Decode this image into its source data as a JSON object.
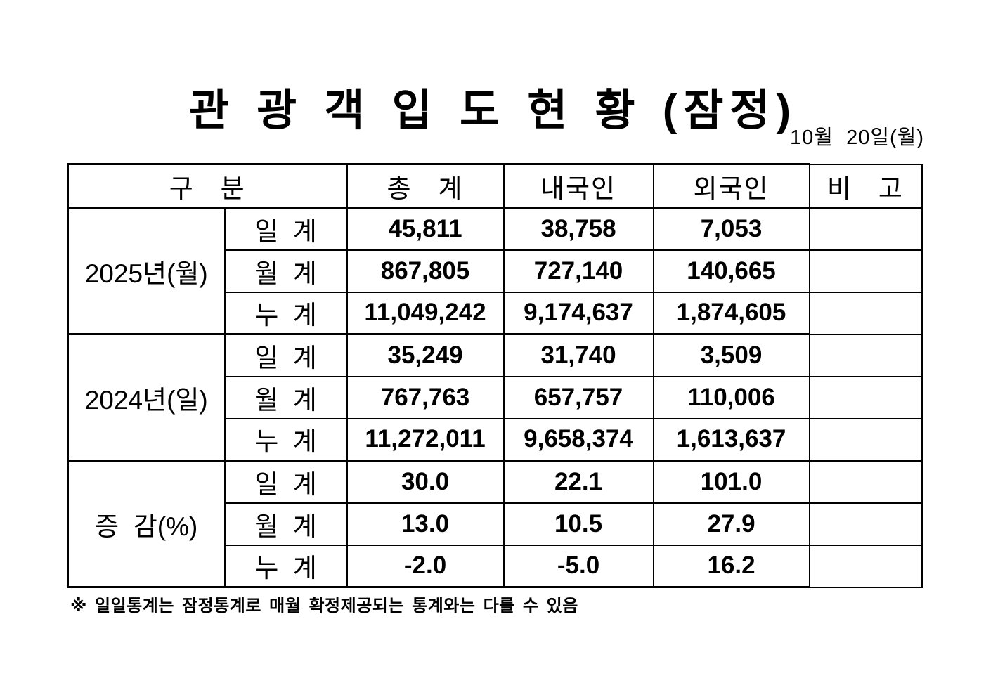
{
  "title": "관 광 객 입 도 현 황 (잠정)",
  "date": "10월  20일(월)",
  "footnote": "※ 일일통계는 잠정통계로 매월 확정제공되는 통계와는 다를 수 있음",
  "colors": {
    "text": "#000000",
    "background": "#ffffff",
    "border": "#000000"
  },
  "table": {
    "headers": {
      "category": "구   분",
      "total": "총   계",
      "domestic": "내국인",
      "foreign": "외국인",
      "remarks": "비   고"
    },
    "groups": [
      {
        "label": "2025년(월)",
        "rows": [
          {
            "label": "일  계",
            "total": "45,811",
            "domestic": "38,758",
            "foreign": "7,053",
            "remarks": ""
          },
          {
            "label": "월  계",
            "total": "867,805",
            "domestic": "727,140",
            "foreign": "140,665",
            "remarks": ""
          },
          {
            "label": "누  계",
            "total": "11,049,242",
            "domestic": "9,174,637",
            "foreign": "1,874,605",
            "remarks": ""
          }
        ]
      },
      {
        "label": "2024년(일)",
        "rows": [
          {
            "label": "일  계",
            "total": "35,249",
            "domestic": "31,740",
            "foreign": "3,509",
            "remarks": ""
          },
          {
            "label": "월  계",
            "total": "767,763",
            "domestic": "657,757",
            "foreign": "110,006",
            "remarks": ""
          },
          {
            "label": "누  계",
            "total": "11,272,011",
            "domestic": "9,658,374",
            "foreign": "1,613,637",
            "remarks": ""
          }
        ]
      },
      {
        "label": "증  감(%)",
        "rows": [
          {
            "label": "일  계",
            "total": "30.0",
            "domestic": "22.1",
            "foreign": "101.0",
            "remarks": ""
          },
          {
            "label": "월  계",
            "total": "13.0",
            "domestic": "10.5",
            "foreign": "27.9",
            "remarks": ""
          },
          {
            "label": "누  계",
            "total": "-2.0",
            "domestic": "-5.0",
            "foreign": "16.2",
            "remarks": ""
          }
        ]
      }
    ]
  },
  "chart_data": {
    "type": "table",
    "title": "관광객 입도 현황 (잠정)",
    "date": "10월 20일(월)",
    "columns": [
      "총계",
      "내국인",
      "외국인"
    ],
    "rows": [
      {
        "group": "2025년(월)",
        "metric": "일계",
        "values": [
          45811,
          38758,
          7053
        ]
      },
      {
        "group": "2025년(월)",
        "metric": "월계",
        "values": [
          867805,
          727140,
          140665
        ]
      },
      {
        "group": "2025년(월)",
        "metric": "누계",
        "values": [
          11049242,
          9174637,
          1874605
        ]
      },
      {
        "group": "2024년(일)",
        "metric": "일계",
        "values": [
          35249,
          31740,
          3509
        ]
      },
      {
        "group": "2024년(일)",
        "metric": "월계",
        "values": [
          767763,
          657757,
          110006
        ]
      },
      {
        "group": "2024년(일)",
        "metric": "누계",
        "values": [
          11272011,
          9658374,
          1613637
        ]
      },
      {
        "group": "증감(%)",
        "metric": "일계",
        "values": [
          30.0,
          22.1,
          101.0
        ]
      },
      {
        "group": "증감(%)",
        "metric": "월계",
        "values": [
          13.0,
          10.5,
          27.9
        ]
      },
      {
        "group": "증감(%)",
        "metric": "누계",
        "values": [
          -2.0,
          -5.0,
          16.2
        ]
      }
    ]
  }
}
